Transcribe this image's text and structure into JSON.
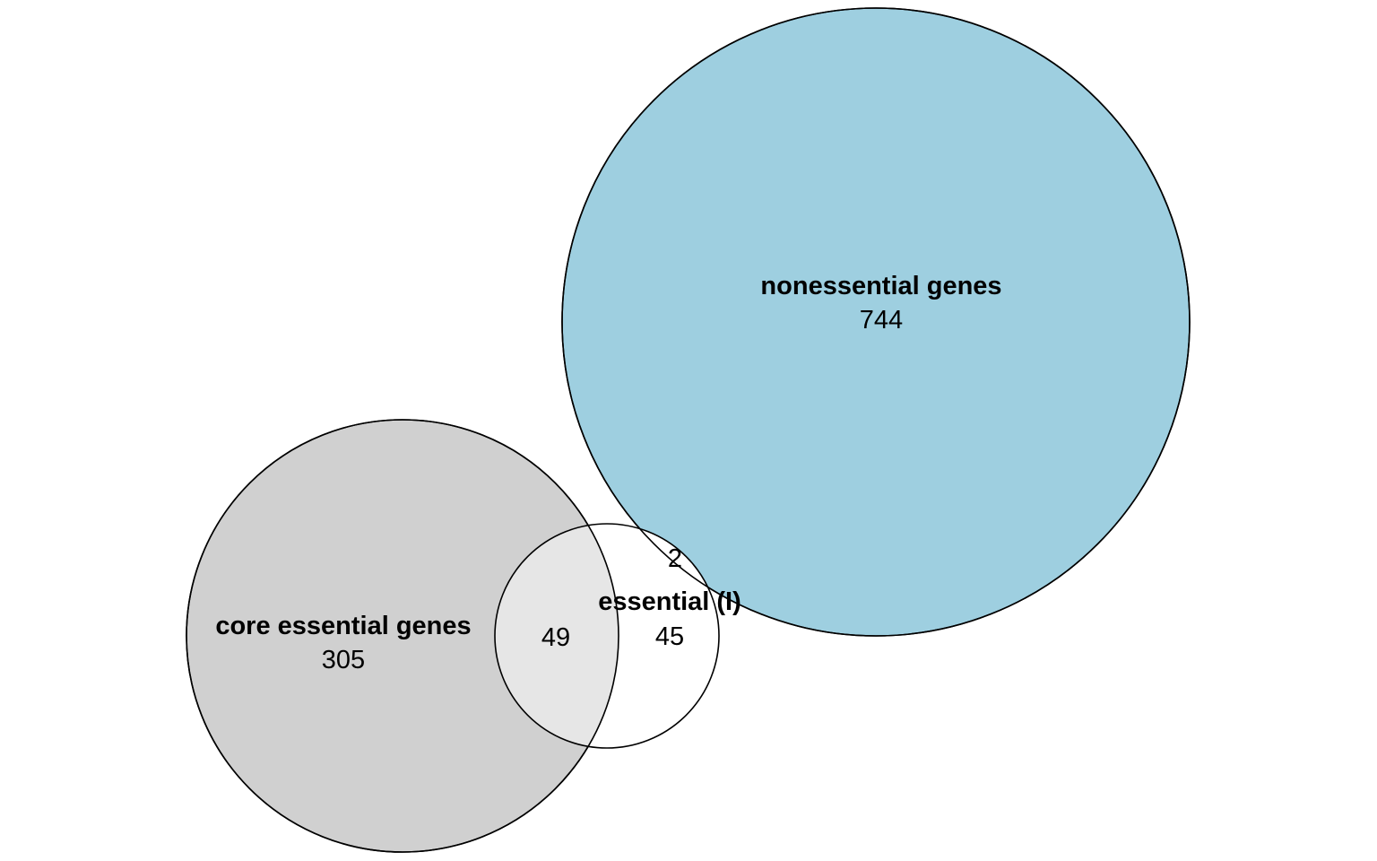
{
  "sets": [
    {
      "key": "nonessential",
      "label": "nonessential genes",
      "count": "744",
      "fill": "#9ecfe0"
    },
    {
      "key": "core",
      "label": "core essential genes",
      "count": "305",
      "fill": "#d0d0d0"
    },
    {
      "key": "essential_i",
      "label": "essential (I)",
      "count": "45",
      "fill": "#ffffff"
    }
  ],
  "intersections": [
    {
      "between": [
        "core",
        "essential_i"
      ],
      "count": "49",
      "fill": "#e6e6e6"
    },
    {
      "between": [
        "nonessential",
        "essential_i"
      ],
      "count": "2"
    }
  ],
  "colors": {
    "stroke": "#000000",
    "background": "#ffffff"
  }
}
